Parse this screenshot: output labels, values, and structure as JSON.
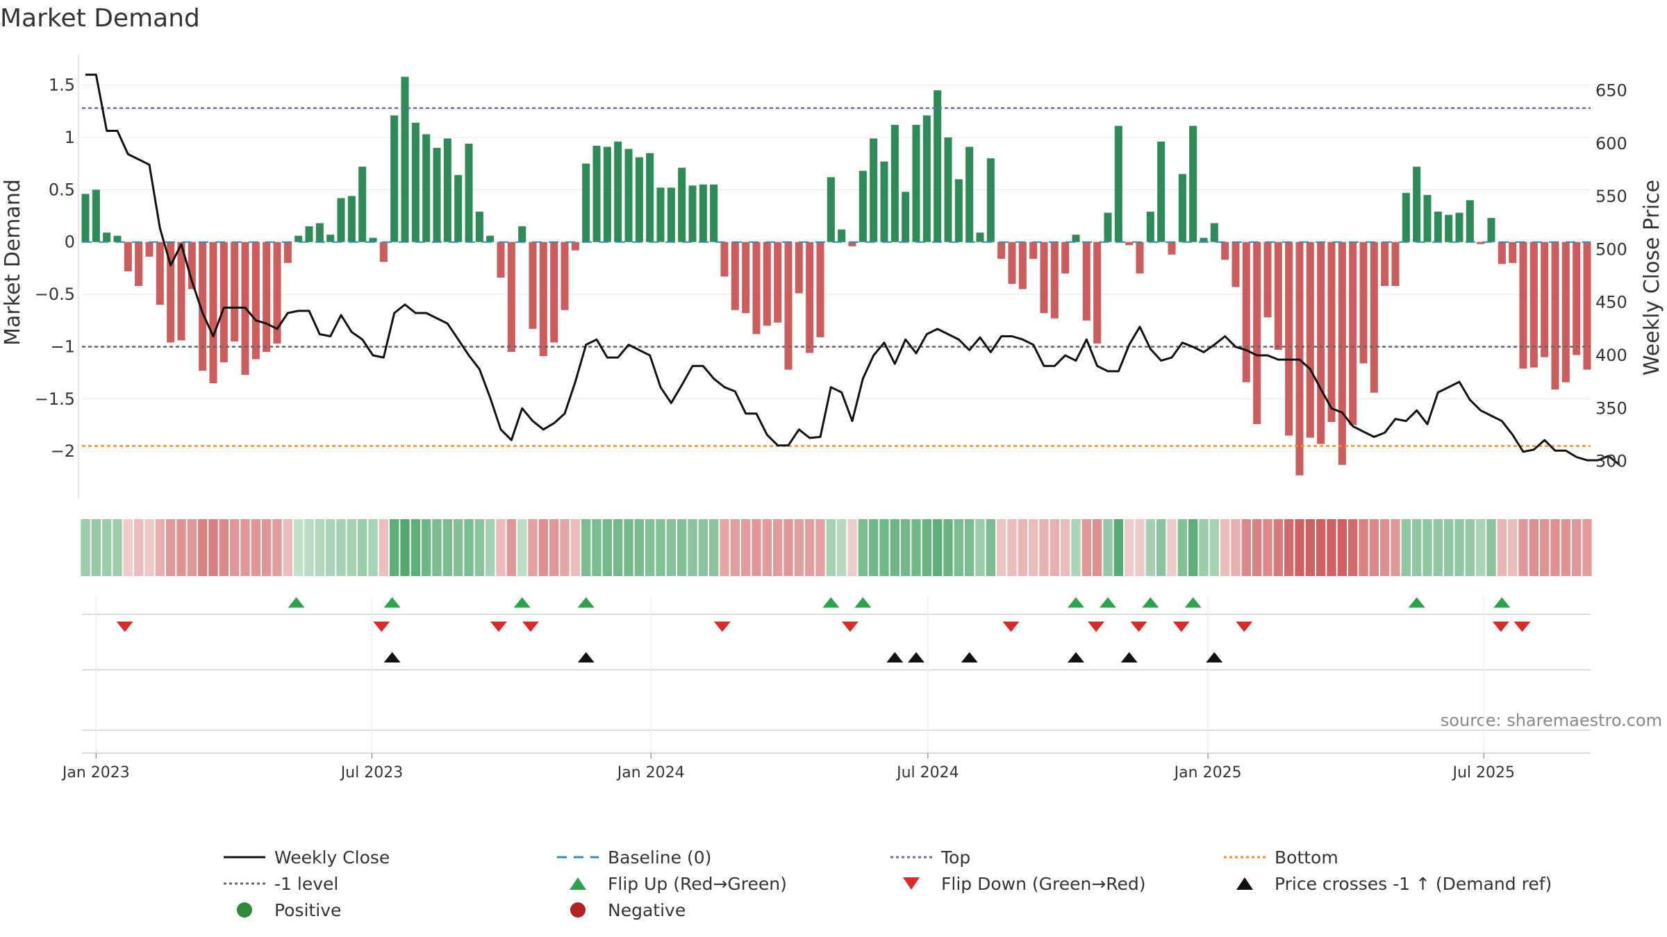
{
  "chart_data": {
    "type": "bar",
    "title": "Market Demand",
    "ylabel": "Market Demand",
    "y2label": "Weekly Close Price",
    "ylim": [
      -2.45,
      1.65
    ],
    "y2lim": [
      265,
      670
    ],
    "yticks": [
      1.5,
      1,
      0.5,
      0,
      -0.5,
      -1,
      -1.5,
      -2
    ],
    "yticklabels": [
      "1.5",
      "1",
      "0.5",
      "0",
      "−0.5",
      "−1",
      "−1.5",
      "−2"
    ],
    "y2ticks": [
      650,
      600,
      550,
      500,
      450,
      400,
      350,
      300
    ],
    "y2ticklabels": [
      "650",
      "600",
      "550",
      "500",
      "450",
      "400",
      "350",
      "300"
    ],
    "x_start_week_offset": -1,
    "xticks": [
      {
        "label": "Jan 2023",
        "week": 0
      },
      {
        "label": "Jul 2023",
        "week": 25.9
      },
      {
        "label": "Jan 2024",
        "week": 52.1
      },
      {
        "label": "Jul 2024",
        "week": 78.1
      },
      {
        "label": "Jan 2025",
        "week": 104.4
      },
      {
        "label": "Jul 2025",
        "week": 130.3
      }
    ],
    "levels": {
      "top": 1.28,
      "bottom": -1.95,
      "minus_one": -1,
      "baseline": 0
    },
    "demand": [
      0.46,
      0.5,
      0.09,
      0.06,
      -0.28,
      -0.42,
      -0.14,
      -0.6,
      -0.96,
      -0.94,
      -0.45,
      -1.23,
      -1.35,
      -1.15,
      -0.95,
      -1.27,
      -1.12,
      -1.05,
      -0.97,
      -0.2,
      0.06,
      0.15,
      0.18,
      0.07,
      0.42,
      0.44,
      0.72,
      0.04,
      -0.19,
      1.21,
      1.58,
      1.14,
      1.03,
      0.9,
      0.99,
      0.64,
      0.94,
      0.29,
      0.06,
      -0.34,
      -1.05,
      0.15,
      -0.83,
      -1.09,
      -0.96,
      -0.65,
      -0.08,
      0.75,
      0.92,
      0.91,
      0.96,
      0.89,
      0.81,
      0.85,
      0.52,
      0.52,
      0.71,
      0.54,
      0.55,
      0.55,
      -0.33,
      -0.65,
      -0.68,
      -0.88,
      -0.8,
      -0.77,
      -1.22,
      -0.49,
      -1.06,
      -0.91,
      0.62,
      0.12,
      -0.04,
      0.68,
      0.99,
      0.77,
      1.12,
      0.48,
      1.12,
      1.21,
      1.45,
      1.0,
      0.6,
      0.91,
      0.09,
      0.8,
      -0.16,
      -0.4,
      -0.45,
      -0.16,
      -0.68,
      -0.73,
      -0.3,
      0.07,
      -0.75,
      -0.97,
      0.28,
      1.11,
      -0.03,
      -0.3,
      0.29,
      0.96,
      -0.12,
      0.65,
      1.11,
      0.04,
      0.18,
      -0.17,
      -0.43,
      -1.34,
      -1.74,
      -0.72,
      -1.03,
      -1.85,
      -2.23,
      -1.87,
      -1.93,
      -1.72,
      -2.13,
      -1.75,
      -1.16,
      -1.44,
      -0.42,
      -0.42,
      0.47,
      0.72,
      0.45,
      0.29,
      0.26,
      0.28,
      0.4,
      -0.02,
      0.23,
      -0.21,
      -0.2,
      -1.21,
      -1.2,
      -1.1,
      -1.41,
      -1.34,
      -1.08,
      -1.22
    ],
    "price": [
      665,
      665,
      612,
      612,
      590,
      585,
      580,
      520,
      485,
      505,
      470,
      440,
      418,
      445,
      445,
      445,
      433,
      430,
      425,
      440,
      442,
      442,
      420,
      418,
      438,
      422,
      415,
      400,
      398,
      440,
      448,
      440,
      440,
      435,
      430,
      415,
      400,
      387,
      360,
      330,
      320,
      350,
      338,
      330,
      336,
      345,
      375,
      410,
      415,
      398,
      398,
      410,
      405,
      400,
      370,
      355,
      372,
      390,
      390,
      378,
      370,
      366,
      345,
      345,
      325,
      315,
      315,
      330,
      322,
      323,
      370,
      365,
      338,
      378,
      400,
      412,
      392,
      415,
      402,
      420,
      425,
      420,
      415,
      405,
      417,
      403,
      418,
      418,
      415,
      410,
      390,
      390,
      400,
      395,
      415,
      390,
      385,
      385,
      410,
      427,
      406,
      395,
      398,
      412,
      408,
      403,
      410,
      418,
      408,
      405,
      400,
      400,
      396,
      396,
      396,
      387,
      368,
      350,
      346,
      333,
      328,
      323,
      327,
      340,
      338,
      348,
      335,
      365,
      370,
      375,
      358,
      348,
      343,
      338,
      325,
      309,
      311,
      320,
      310,
      310,
      304,
      301,
      301,
      305,
      297
    ],
    "colorbar_values": [
      0.35,
      0.38,
      0.35,
      0.35,
      -0.1,
      -0.2,
      -0.12,
      -0.3,
      -0.45,
      -0.48,
      -0.45,
      -0.6,
      -0.62,
      -0.55,
      -0.45,
      -0.45,
      -0.45,
      -0.45,
      -0.42,
      -0.2,
      0.12,
      0.18,
      0.22,
      0.25,
      0.3,
      0.3,
      0.35,
      0.28,
      -0.18,
      0.72,
      0.78,
      0.72,
      0.62,
      0.55,
      0.55,
      0.5,
      0.55,
      0.45,
      0.3,
      -0.2,
      -0.45,
      0.15,
      -0.38,
      -0.5,
      -0.45,
      -0.35,
      -0.2,
      0.55,
      0.55,
      0.58,
      0.58,
      0.58,
      0.55,
      0.5,
      0.5,
      0.48,
      0.5,
      0.45,
      0.45,
      0.45,
      -0.35,
      -0.4,
      -0.42,
      -0.45,
      -0.42,
      -0.42,
      -0.45,
      -0.4,
      -0.4,
      -0.38,
      0.3,
      0.2,
      -0.1,
      0.55,
      0.6,
      0.6,
      0.62,
      0.58,
      0.6,
      0.65,
      0.72,
      0.65,
      0.55,
      0.55,
      0.35,
      0.55,
      -0.15,
      -0.2,
      -0.25,
      -0.2,
      -0.28,
      -0.3,
      -0.2,
      0.25,
      -0.45,
      -0.5,
      0.4,
      0.75,
      -0.1,
      -0.12,
      0.3,
      0.45,
      -0.1,
      0.5,
      0.72,
      0.35,
      0.3,
      -0.2,
      -0.3,
      -0.55,
      -0.6,
      -0.55,
      -0.65,
      -0.75,
      -0.82,
      -0.82,
      -0.82,
      -0.82,
      -0.82,
      -0.75,
      -0.6,
      -0.55,
      -0.5,
      -0.45,
      0.42,
      0.42,
      0.42,
      0.42,
      0.42,
      0.42,
      0.4,
      0.25,
      0.45,
      -0.25,
      -0.2,
      -0.45,
      -0.5,
      -0.48,
      -0.5,
      -0.48,
      -0.45,
      -0.42
    ],
    "flip_up_weeks": [
      18.8,
      27.8,
      40,
      46,
      69,
      72,
      92,
      95,
      99,
      103,
      124,
      132
    ],
    "flip_down_weeks": [
      2.7,
      26.8,
      37.8,
      40.8,
      58.8,
      70.8,
      85.9,
      93.9,
      97.9,
      101.9,
      107.8,
      131.9,
      133.9
    ],
    "price_cross_weeks": [
      27.8,
      46,
      75,
      77,
      82,
      92,
      97,
      105
    ],
    "source": "source: sharemaestro.com",
    "legend": [
      {
        "label": "Weekly Close",
        "kind": "line",
        "color": "#111111",
        "dash": ""
      },
      {
        "label": "Baseline (0)",
        "kind": "line",
        "color": "#2b8cbe",
        "dash": "14,10"
      },
      {
        "label": "Top",
        "kind": "line",
        "color": "#6a6abf",
        "dash": "4,4"
      },
      {
        "label": "Bottom",
        "kind": "line",
        "color": "#ff8c1a",
        "dash": "4,4"
      },
      {
        "label": "-1 level",
        "kind": "line",
        "color": "#666666",
        "dash": "4,4"
      },
      {
        "label": "Flip Up (Red→Green)",
        "kind": "tri-up",
        "color": "#2ca24a"
      },
      {
        "label": "Flip Down (Green→Red)",
        "kind": "tri-down",
        "color": "#d62b2b"
      },
      {
        "label": "Price crosses -1 ↑ (Demand ref)",
        "kind": "tri-up",
        "color": "#111111"
      },
      {
        "label": "Positive",
        "kind": "dot",
        "color": "#2e8b3a"
      },
      {
        "label": "Negative",
        "kind": "dot",
        "color": "#b22222"
      }
    ],
    "colors": {
      "positive_bar": "#2e8b57",
      "negative_bar": "#cd5c5c",
      "price_line": "#111111",
      "top_line": "#6a6abf",
      "bottom_line": "#ff8c1a",
      "minus_one_line": "#666666",
      "baseline_line": "#2b8cbe"
    }
  }
}
